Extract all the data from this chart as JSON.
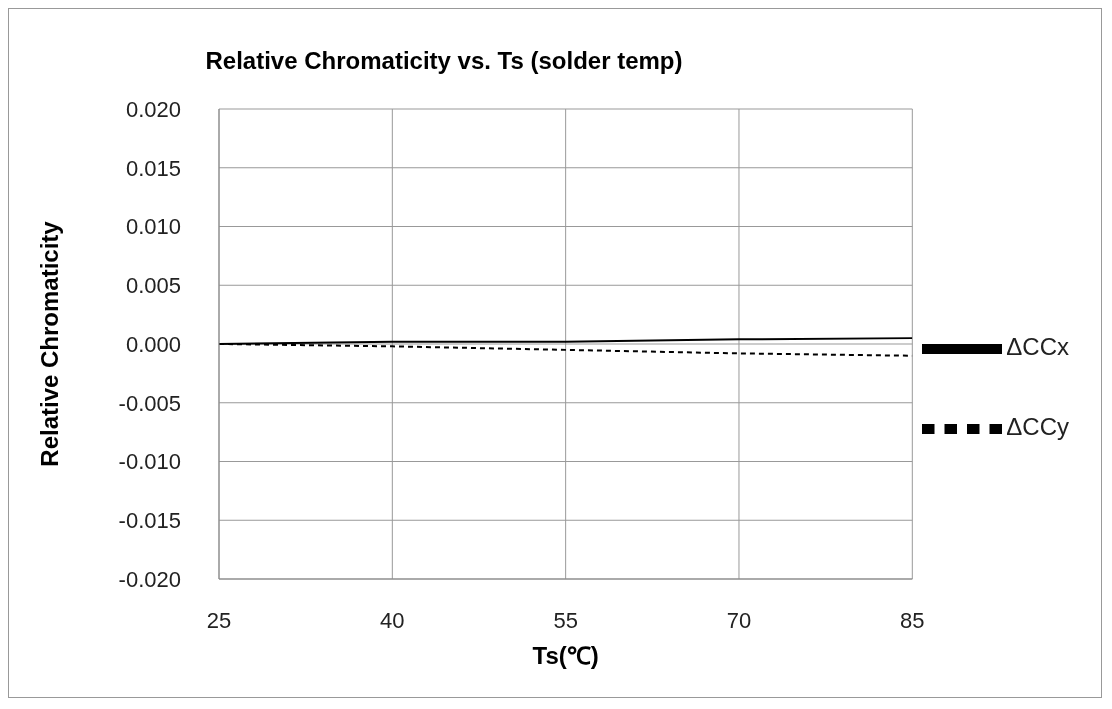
{
  "chart_data": {
    "type": "line",
    "title": "Relative Chromaticity  vs. Ts (solder temp)",
    "xlabel": "Ts(℃)",
    "ylabel": "Relative Chromaticity",
    "x": [
      25,
      40,
      55,
      70,
      85
    ],
    "series": [
      {
        "name": "ΔCCx",
        "color": "#000000",
        "line_style": "solid",
        "values": [
          0,
          0.0002,
          0.0002,
          0.0004,
          0.0005
        ]
      },
      {
        "name": "ΔCCy",
        "color": "#000000",
        "line_style": "dashed",
        "values": [
          0,
          -0.0002,
          -0.0005,
          -0.0008,
          -0.001
        ]
      }
    ],
    "xlim": [
      25,
      85
    ],
    "xticks": [
      25,
      40,
      55,
      70,
      85
    ],
    "ylim": [
      -0.02,
      0.02
    ],
    "yticks": [
      {
        "value": -0.02,
        "label": "-0.020"
      },
      {
        "value": -0.015,
        "label": "-0.015"
      },
      {
        "value": -0.01,
        "label": "-0.010"
      },
      {
        "value": -0.005,
        "label": "-0.005"
      },
      {
        "value": 0,
        "label": "0.000"
      },
      {
        "value": 0.005,
        "label": "0.005"
      },
      {
        "value": 0.01,
        "label": "0.010"
      },
      {
        "value": 0.015,
        "label": "0.015"
      },
      {
        "value": 0.02,
        "label": "0.020"
      }
    ],
    "grid": true,
    "legend": "right",
    "marker": "none"
  }
}
